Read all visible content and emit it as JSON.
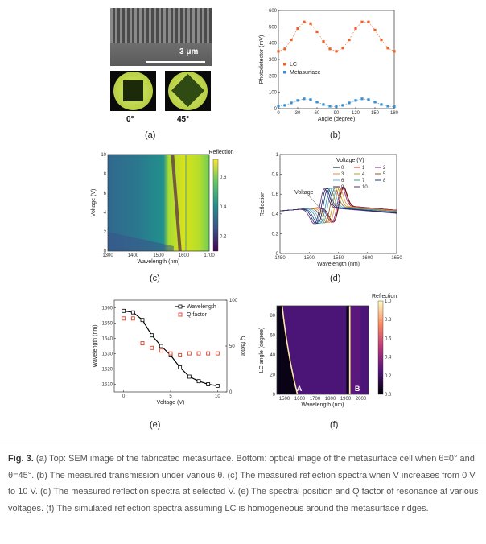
{
  "panel_labels": {
    "a": "(a)",
    "b": "(b)",
    "c": "(c)",
    "d": "(d)",
    "e": "(e)",
    "f": "(f)"
  },
  "panel_a": {
    "scale_bar": "3 μm",
    "angle_0": "0°",
    "angle_45": "45°"
  },
  "caption": {
    "fig_label": "Fig. 3.",
    "text": " (a) Top: SEM image of the fabricated metasurface. Bottom: optical image of the metasurface cell when θ=0° and θ=45°. (b) The measured transmission under various θ. (c) The measured reflection spectra when V increases from 0 V to 10 V. (d) The measured reflection spectra at selected V. (e) The spectral position and Q factor of resonance at various voltages. (f) The simulated reflection spectra assuming LC is homogeneous around the metasurface ridges."
  },
  "chart_data": [
    {
      "id": "b",
      "type": "scatter",
      "xlabel": "Angle (degree)",
      "ylabel": "Photodetector (mV)",
      "xlim": [
        0,
        180
      ],
      "ylim": [
        0,
        600
      ],
      "xticks": [
        0,
        30,
        60,
        90,
        120,
        150,
        180
      ],
      "yticks": [
        0,
        100,
        200,
        300,
        400,
        500,
        600
      ],
      "legend_position": "center-left",
      "colors": {
        "LC": "#e8632c",
        "Metasurface": "#3a8fd0"
      },
      "series": [
        {
          "name": "LC",
          "x": [
            0,
            10,
            20,
            30,
            40,
            50,
            60,
            70,
            80,
            90,
            100,
            110,
            120,
            130,
            140,
            150,
            160,
            170,
            180
          ],
          "values": [
            350,
            365,
            420,
            490,
            530,
            520,
            470,
            410,
            365,
            350,
            370,
            420,
            490,
            530,
            530,
            480,
            420,
            370,
            350
          ]
        },
        {
          "name": "Metasurface",
          "x": [
            0,
            10,
            20,
            30,
            40,
            50,
            60,
            70,
            80,
            90,
            100,
            110,
            120,
            130,
            140,
            150,
            160,
            170,
            180
          ],
          "values": [
            15,
            20,
            35,
            50,
            60,
            55,
            40,
            25,
            15,
            12,
            20,
            35,
            50,
            60,
            55,
            40,
            25,
            15,
            12
          ]
        }
      ]
    },
    {
      "id": "c",
      "type": "heatmap",
      "xlabel": "Wavelength (nm)",
      "ylabel": "Voltage (V)",
      "colorbar_label": "Reflection",
      "xlim": [
        1300,
        1700
      ],
      "ylim": [
        0,
        10
      ],
      "xticks": [
        1300,
        1400,
        1500,
        1600,
        1700
      ],
      "yticks": [
        0,
        2,
        4,
        6,
        8,
        10
      ],
      "cbar_ticks": [
        0.2,
        0.4,
        0.6
      ],
      "cbar_range": [
        0.1,
        0.72
      ]
    },
    {
      "id": "d",
      "type": "line",
      "xlabel": "Wavelength (nm)",
      "ylabel": "Reflection",
      "xlim": [
        1450,
        1650
      ],
      "ylim": [
        0,
        1.0
      ],
      "xticks": [
        1450,
        1500,
        1550,
        1600,
        1650
      ],
      "yticks": [
        0,
        0.2,
        0.4,
        0.6,
        0.8,
        1.0
      ],
      "legend_title": "Voltage  (V)",
      "annotation": "Voltage",
      "series": [
        {
          "name": "0",
          "color": "#000000",
          "dip": 1543
        },
        {
          "name": "1",
          "color": "#e02020",
          "dip": 1542
        },
        {
          "name": "2",
          "color": "#6b2a7a",
          "dip": 1540
        },
        {
          "name": "3",
          "color": "#f08a3a",
          "dip": 1536
        },
        {
          "name": "4",
          "color": "#b8a020",
          "dip": 1532
        },
        {
          "name": "5",
          "color": "#8a5a30",
          "dip": 1528
        },
        {
          "name": "6",
          "color": "#60b0e0",
          "dip": 1524
        },
        {
          "name": "7",
          "color": "#30a0a0",
          "dip": 1520
        },
        {
          "name": "8",
          "color": "#1a3a8a",
          "dip": 1516
        },
        {
          "name": "9",
          "color": "#202060",
          "dip": 1513
        },
        {
          "name": "10",
          "color": "#503070",
          "dip": 1510
        }
      ]
    },
    {
      "id": "e",
      "type": "line",
      "xlabel": "Voltage (V)",
      "ylabel": "Wavelength (nm)",
      "y2label": "Q factor",
      "xlim": [
        -1,
        11
      ],
      "ylim": [
        1505,
        1565
      ],
      "y2lim": [
        0,
        100
      ],
      "xticks": [
        0,
        5,
        10
      ],
      "yticks": [
        1510,
        1520,
        1530,
        1540,
        1550,
        1560
      ],
      "y2ticks": [
        0,
        50,
        100
      ],
      "legend_position": "top-right",
      "colors": {
        "Wavelength": "#000000",
        "Q factor": "#d9402a"
      },
      "series": [
        {
          "name": "Wavelength",
          "x": [
            0,
            1,
            2,
            3,
            4,
            5,
            6,
            7,
            8,
            9,
            10
          ],
          "values": [
            1558,
            1557,
            1552,
            1542,
            1535,
            1529,
            1521,
            1515,
            1512,
            1510,
            1509
          ]
        },
        {
          "name": "Q factor",
          "x": [
            0,
            1,
            2,
            3,
            4,
            5,
            6,
            7,
            8,
            9,
            10
          ],
          "values": [
            80,
            80,
            53,
            48,
            45,
            42,
            40,
            42,
            42,
            42,
            42
          ]
        }
      ]
    },
    {
      "id": "f",
      "type": "heatmap",
      "xlabel": "Wavelength (nm)",
      "ylabel": "LC angle (degree)",
      "colorbar_label": "Reflection",
      "xlim": [
        1450,
        2050
      ],
      "ylim": [
        0,
        90
      ],
      "xticks": [
        1500,
        1600,
        1700,
        1800,
        1900,
        2000
      ],
      "yticks": [
        0,
        20,
        40,
        60,
        80
      ],
      "cbar_ticks": [
        0.0,
        0.2,
        0.4,
        0.6,
        0.8,
        1.0
      ],
      "cbar_range": [
        0,
        1
      ],
      "annotations": [
        "A",
        "B"
      ]
    }
  ]
}
